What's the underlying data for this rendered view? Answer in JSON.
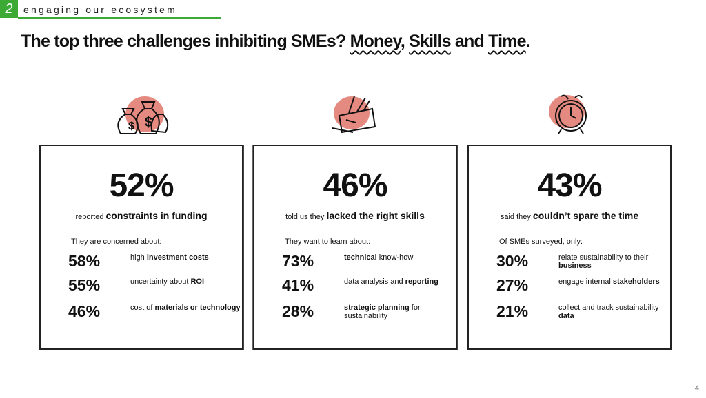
{
  "header": {
    "section": "2",
    "label": "engaging our ecosystem"
  },
  "title": {
    "segments": [
      {
        "text": "The top three challenges inhibiting SMEs? "
      },
      {
        "text": "Money",
        "underline": true
      },
      {
        "text": ", "
      },
      {
        "text": "Skills",
        "underline": true
      },
      {
        "text": " and "
      },
      {
        "text": "Time",
        "underline": true
      },
      {
        "text": "."
      }
    ]
  },
  "cards": [
    {
      "headline": "52%",
      "summary": [
        {
          "text": "reported "
        },
        {
          "text": "constraints in funding",
          "bold": true
        }
      ],
      "intro": "They are concerned about:",
      "items": [
        {
          "percent": "58%",
          "text": [
            {
              "text": "high "
            },
            {
              "text": "investment costs",
              "bold": true
            }
          ]
        },
        {
          "percent": "55%",
          "text": [
            {
              "text": "uncertainty about "
            },
            {
              "text": "ROI",
              "bold": true
            }
          ]
        },
        {
          "percent": "46%",
          "text": [
            {
              "text": "cost of "
            },
            {
              "text": "materials or technology",
              "bold": true
            }
          ]
        }
      ]
    },
    {
      "headline": "46%",
      "summary": [
        {
          "text": "told us they "
        },
        {
          "text": "lacked the right skills",
          "bold": true
        }
      ],
      "intro": "They want to learn about:",
      "items": [
        {
          "percent": "73%",
          "text": [
            {
              "text": "technical",
              "bold": true
            },
            {
              "text": " know-how"
            }
          ]
        },
        {
          "percent": "41%",
          "text": [
            {
              "text": "data analysis and "
            },
            {
              "text": "reporting",
              "bold": true
            }
          ]
        },
        {
          "percent": "28%",
          "text": [
            {
              "text": "strategic planning",
              "bold": true
            },
            {
              "text": " for sustainability"
            }
          ]
        }
      ]
    },
    {
      "headline": "43%",
      "summary": [
        {
          "text": "said they "
        },
        {
          "text": "couldn’t spare the time",
          "bold": true
        }
      ],
      "intro": "Of SMEs surveyed, only:",
      "items": [
        {
          "percent": "30%",
          "text": [
            {
              "text": "relate sustainability to their "
            },
            {
              "text": "business",
              "bold": true
            }
          ]
        },
        {
          "percent": "27%",
          "text": [
            {
              "text": "engage internal "
            },
            {
              "text": "stakeholders",
              "bold": true
            }
          ]
        },
        {
          "percent": "21%",
          "text": [
            {
              "text": "collect and track sustainability "
            },
            {
              "text": "data",
              "bold": true
            }
          ]
        }
      ]
    }
  ],
  "page_number": "4"
}
